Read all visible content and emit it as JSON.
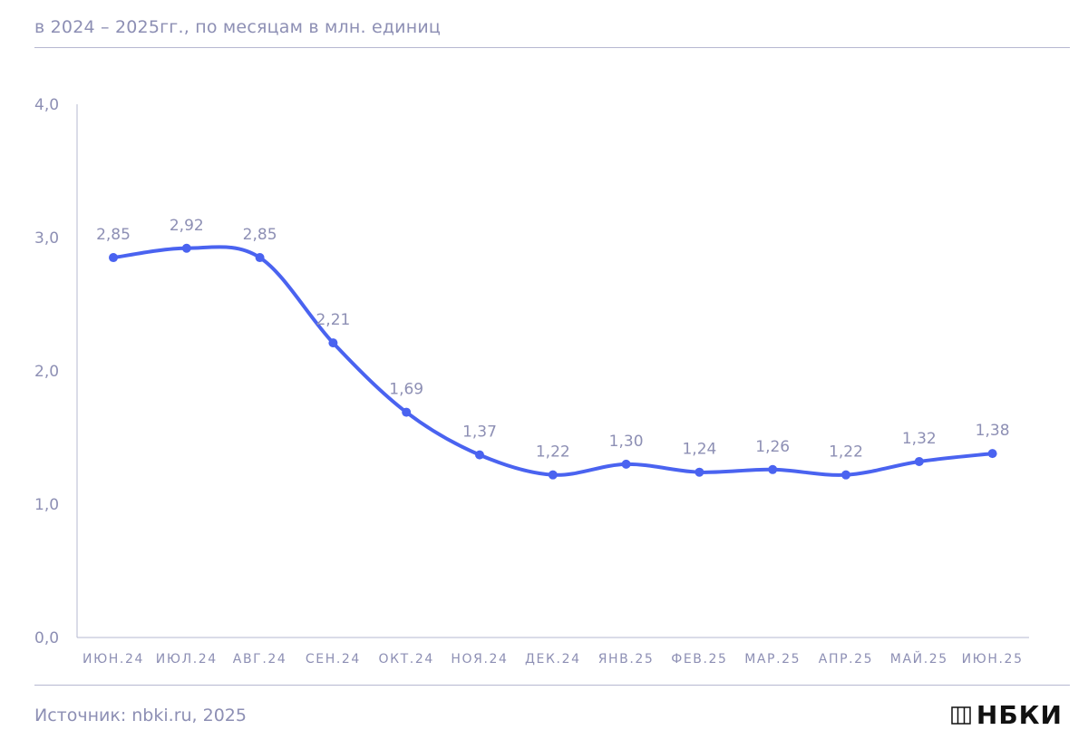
{
  "header": {
    "subtitle": "в 2024 – 2025гг., по месяцам в млн. единиц"
  },
  "footer": {
    "source": "Источник: nbki.ru, 2025",
    "logo_text": "НБКИ"
  },
  "chart_data": {
    "type": "line",
    "categories": [
      "ИЮН.24",
      "ИЮЛ.24",
      "АВГ.24",
      "СЕН.24",
      "ОКТ.24",
      "НОЯ.24",
      "ДЕК.24",
      "ЯНВ.25",
      "ФЕВ.25",
      "МАР.25",
      "АПР.25",
      "МАЙ.25",
      "ИЮН.25"
    ],
    "values": [
      2.85,
      2.92,
      2.85,
      2.21,
      1.69,
      1.37,
      1.22,
      1.3,
      1.24,
      1.26,
      1.22,
      1.32,
      1.38
    ],
    "data_labels": [
      "2,85",
      "2,92",
      "2,85",
      "2,21",
      "1,69",
      "1,37",
      "1,22",
      "1,30",
      "1,24",
      "1,26",
      "1,22",
      "1,32",
      "1,38"
    ],
    "yticks": [
      0,
      1,
      2,
      3,
      4
    ],
    "ytick_labels": [
      "0,0",
      "1,0",
      "2,0",
      "3,0",
      "4,0"
    ],
    "ylim": [
      0,
      4
    ],
    "grid": false,
    "line_color": "#4a63f0",
    "label_color": "#8d8fb4"
  }
}
